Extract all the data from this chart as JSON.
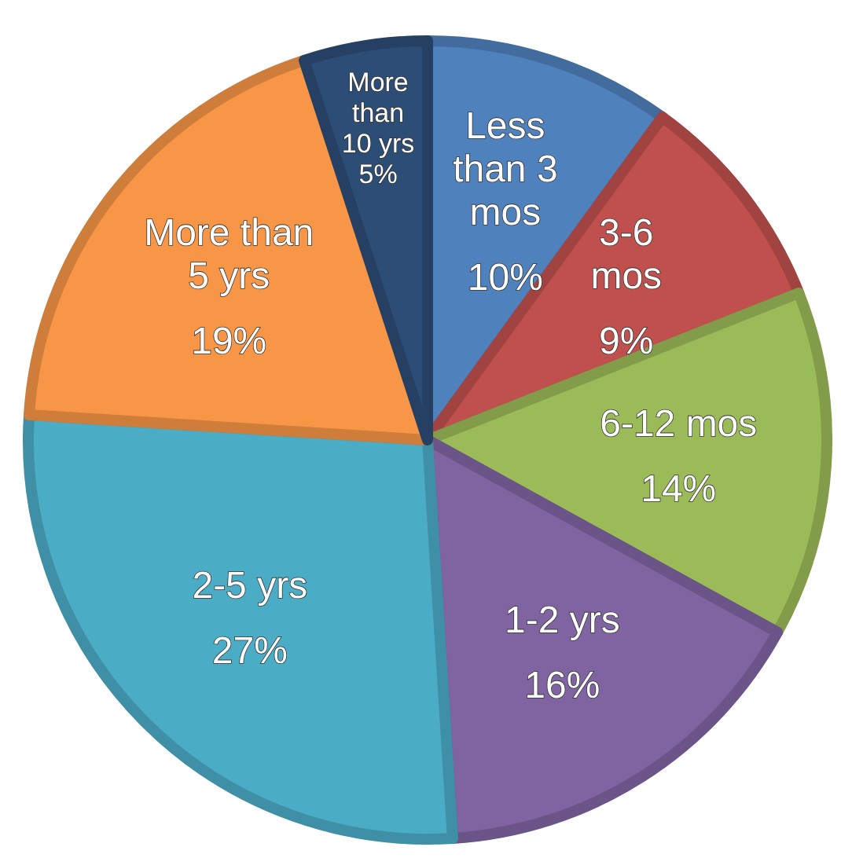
{
  "chart_data": {
    "type": "pie",
    "categories": [
      "Less than 3 mos",
      "3-6 mos",
      "6-12 mos",
      "1-2 yrs",
      "2-5 yrs",
      "More than 5 yrs",
      "More than 10 yrs"
    ],
    "values": [
      10,
      9,
      14,
      16,
      27,
      19,
      5
    ],
    "value_labels": [
      "10%",
      "9%",
      "14%",
      "16%",
      "27%",
      "19%",
      "5%"
    ],
    "colors": [
      "#4f81bd",
      "#c0504d",
      "#9bbb59",
      "#8064a2",
      "#4bacc6",
      "#f79646",
      "#2c4d75"
    ]
  }
}
